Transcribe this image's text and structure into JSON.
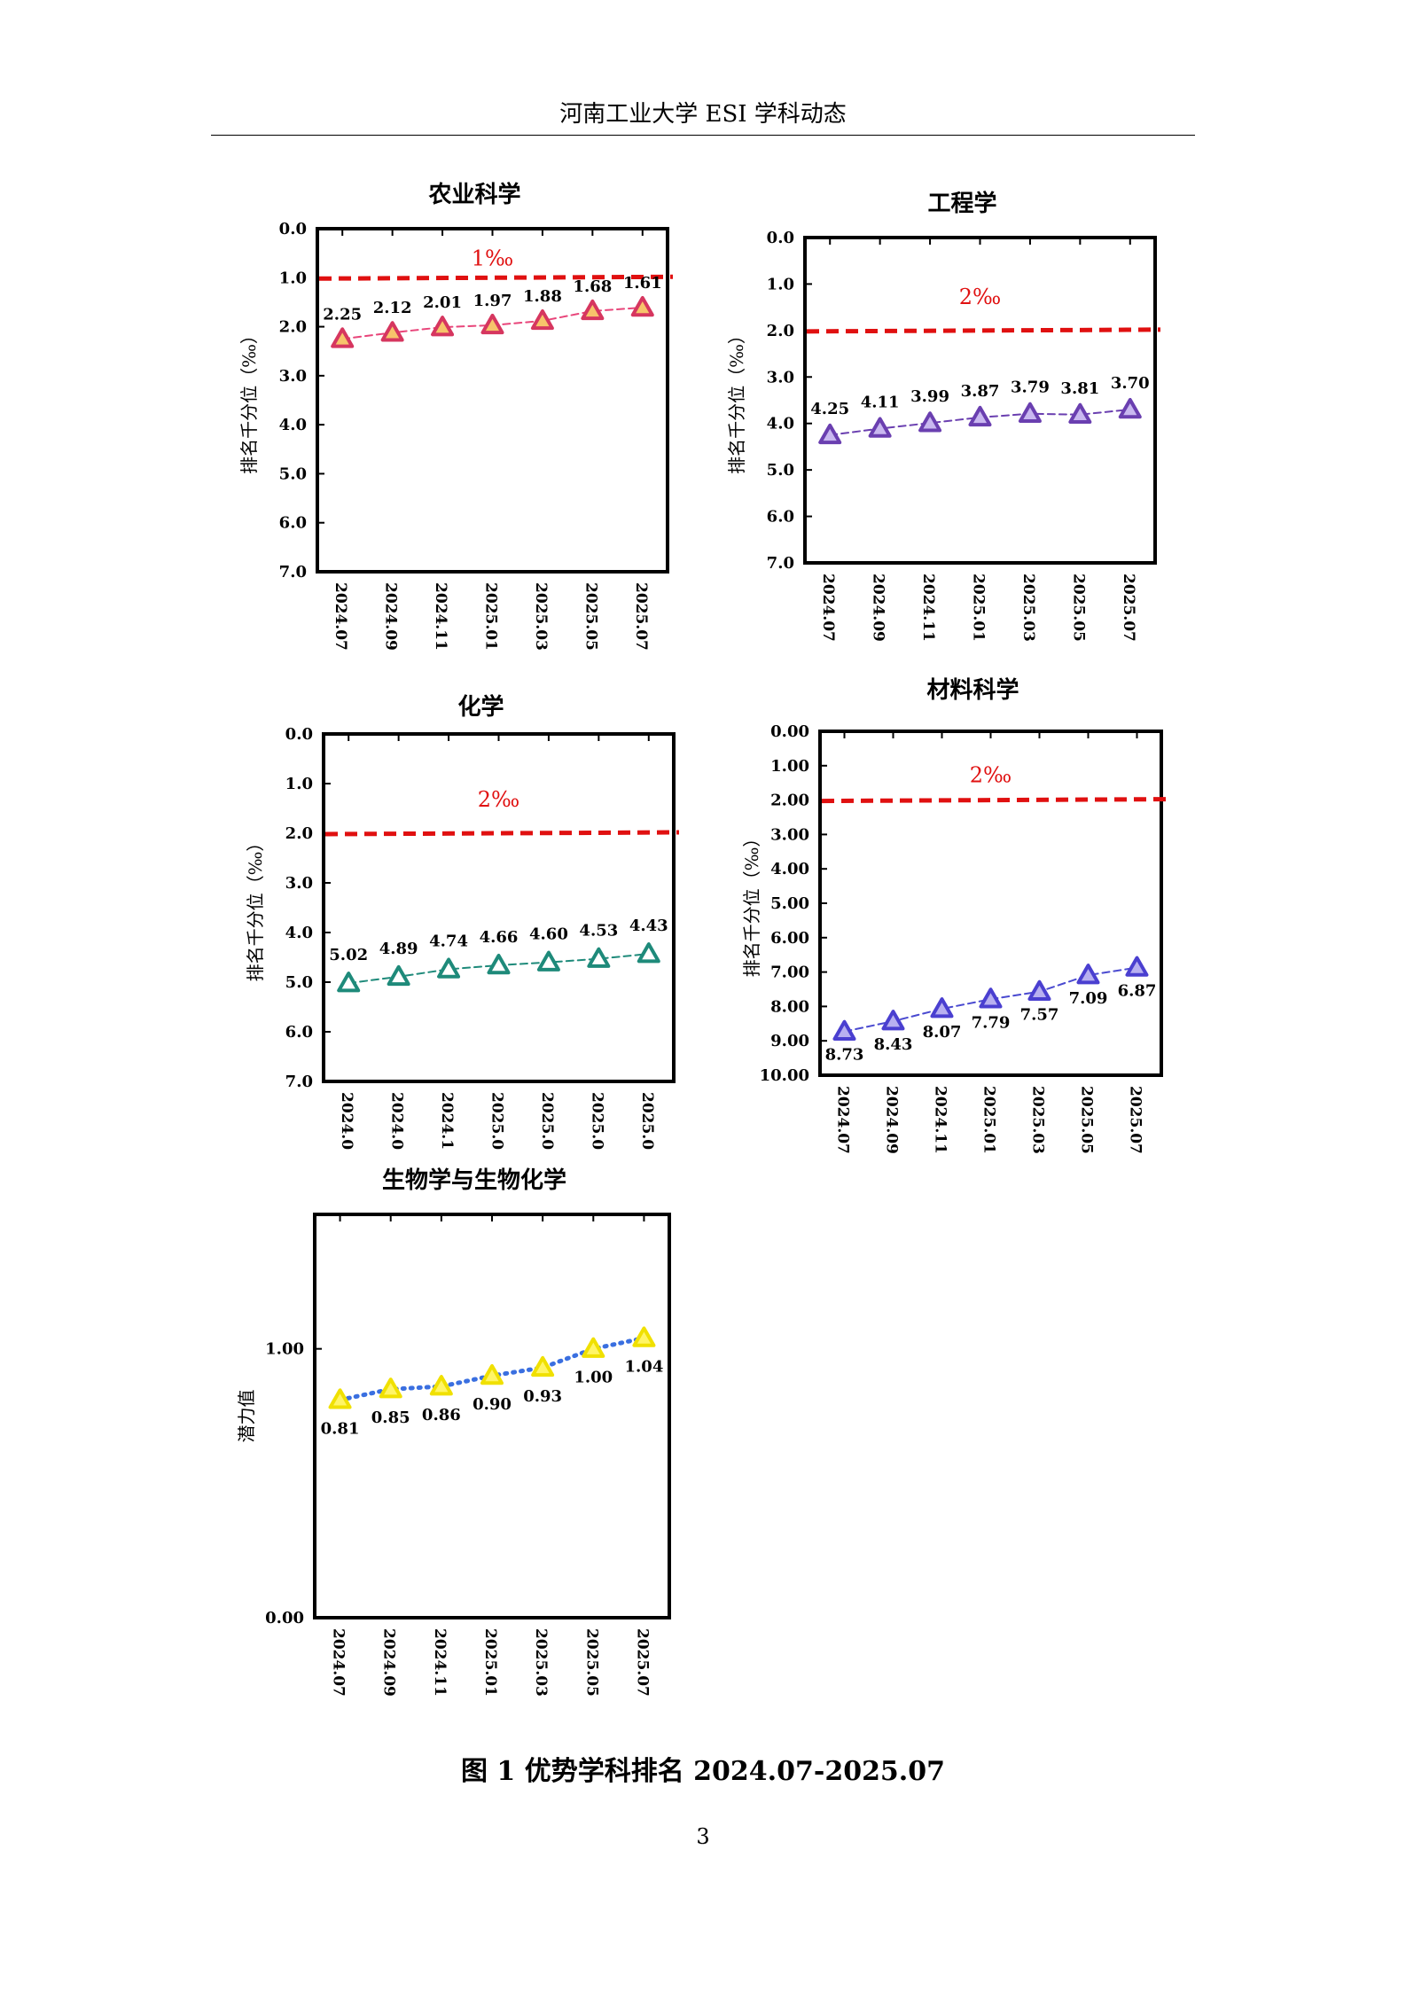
{
  "header": {
    "title": "河南工业大学 ESI 学科动态"
  },
  "footer": {
    "caption": "图 1  优势学科排名 2024.07-2025.07",
    "page_number": "3"
  },
  "chart_data": [
    {
      "type": "line",
      "title": "农业科学",
      "ylabel": "排名千分位（‰）",
      "x": [
        "2024.07",
        "2024.09",
        "2024.11",
        "2025.01",
        "2025.03",
        "2025.05",
        "2025.07"
      ],
      "ylim": [
        0,
        7
      ],
      "yticks": [
        "0.0",
        "1.0",
        "2.0",
        "3.0",
        "4.0",
        "5.0",
        "6.0",
        "7.0"
      ],
      "y_inverted": true,
      "series": [
        {
          "values": [
            2.25,
            2.12,
            2.01,
            1.97,
            1.88,
            1.68,
            1.61
          ],
          "labels": [
            "2.25",
            "2.12",
            "2.01",
            "1.97",
            "1.88",
            "1.68",
            "1.61"
          ],
          "line_style": "dashed",
          "line_color": "#e8457a",
          "marker": "triangle",
          "marker_stroke": "#d6365f",
          "marker_fill": "#f7c46b"
        }
      ],
      "threshold": {
        "value": 1.0,
        "label": "1‰",
        "color": "#e01010"
      }
    },
    {
      "type": "line",
      "title": "工程学",
      "ylabel": "排名千分位（‰）",
      "x": [
        "2024.07",
        "2024.09",
        "2024.11",
        "2025.01",
        "2025.03",
        "2025.05",
        "2025.07"
      ],
      "ylim": [
        0,
        7
      ],
      "yticks": [
        "0.0",
        "1.0",
        "2.0",
        "3.0",
        "4.0",
        "5.0",
        "6.0",
        "7.0"
      ],
      "y_inverted": true,
      "series": [
        {
          "values": [
            4.25,
            4.11,
            3.99,
            3.87,
            3.79,
            3.81,
            3.7
          ],
          "labels": [
            "4.25",
            "4.11",
            "3.99",
            "3.87",
            "3.79",
            "3.81",
            "3.70"
          ],
          "line_style": "dashed",
          "line_color": "#6a3fb0",
          "marker": "triangle",
          "marker_stroke": "#6a3fb0",
          "marker_fill": "#c9b8f0"
        }
      ],
      "threshold": {
        "value": 2.0,
        "label": "2‰",
        "color": "#e01010"
      }
    },
    {
      "type": "line",
      "title": "化学",
      "ylabel": "排名千分位（‰）",
      "x": [
        "2024.0",
        "2024.0",
        "2024.1",
        "2025.0",
        "2025.0",
        "2025.0",
        "2025.0"
      ],
      "ylim": [
        0,
        7
      ],
      "yticks": [
        "0.0",
        "1.0",
        "2.0",
        "3.0",
        "4.0",
        "5.0",
        "6.0",
        "7.0"
      ],
      "y_inverted": true,
      "series": [
        {
          "values": [
            5.02,
            4.89,
            4.74,
            4.66,
            4.6,
            4.53,
            4.43
          ],
          "labels": [
            "5.02",
            "4.89",
            "4.74",
            "4.66",
            "4.60",
            "4.53",
            "4.43"
          ],
          "line_style": "dashed",
          "line_color": "#1e8a7a",
          "marker": "triangle",
          "marker_stroke": "#1e8a7a",
          "marker_fill": "#ffffff"
        }
      ],
      "threshold": {
        "value": 2.0,
        "label": "2‰",
        "color": "#e01010"
      }
    },
    {
      "type": "line",
      "title": "材料科学",
      "ylabel": "排名千分位（‰）",
      "x": [
        "2024.07",
        "2024.09",
        "2024.11",
        "2025.01",
        "2025.03",
        "2025.05",
        "2025.07"
      ],
      "ylim": [
        0,
        10
      ],
      "yticks": [
        "0.00",
        "1.00",
        "2.00",
        "3.00",
        "4.00",
        "5.00",
        "6.00",
        "7.00",
        "8.00",
        "9.00",
        "10.00"
      ],
      "y_inverted": true,
      "series": [
        {
          "values": [
            8.73,
            8.43,
            8.07,
            7.79,
            7.57,
            7.09,
            6.87
          ],
          "labels": [
            "8.73",
            "8.43",
            "8.07",
            "7.79",
            "7.57",
            "7.09",
            "6.87"
          ],
          "line_style": "dashed",
          "line_color": "#4a4ad0",
          "marker": "triangle",
          "marker_stroke": "#4a3fd0",
          "marker_fill": "#b8b0f0"
        }
      ],
      "threshold": {
        "value": 2.0,
        "label": "2‰",
        "color": "#e01010"
      }
    },
    {
      "type": "line",
      "title": "生物学与生物化学",
      "ylabel": "潜力值",
      "x": [
        "2024.07",
        "2024.09",
        "2024.11",
        "2025.01",
        "2025.03",
        "2025.05",
        "2025.07"
      ],
      "ylim": [
        0,
        1.5
      ],
      "yticks": [
        "0.00",
        "1.00"
      ],
      "ytick_values": [
        0,
        1
      ],
      "y_inverted": false,
      "series": [
        {
          "values": [
            0.81,
            0.85,
            0.86,
            0.9,
            0.93,
            1.0,
            1.04
          ],
          "labels": [
            "0.81",
            "0.85",
            "0.86",
            "0.90",
            "0.93",
            "1.00",
            "1.04"
          ],
          "line_style": "dotted",
          "line_color": "#3a6fe0",
          "marker": "triangle",
          "marker_stroke": "#f0e000",
          "marker_fill": "#fff566"
        }
      ]
    }
  ]
}
